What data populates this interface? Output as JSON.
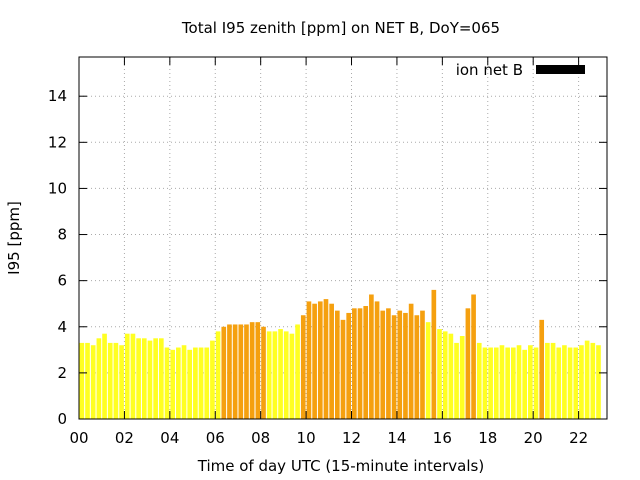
{
  "chart_data": {
    "type": "bar",
    "title": "Total I95 zenith [ppm] on NET B, DoY=065",
    "xlabel": "Time of day UTC (15-minute intervals)",
    "ylabel": "I95 [ppm]",
    "x_tick_labels": [
      "00",
      "02",
      "04",
      "06",
      "08",
      "10",
      "12",
      "14",
      "16",
      "18",
      "20",
      "22"
    ],
    "x_tick_hours": [
      0,
      2,
      4,
      6,
      8,
      10,
      12,
      14,
      16,
      18,
      20,
      22
    ],
    "y_tick_labels": [
      "0",
      "2",
      "4",
      "6",
      "8",
      "10",
      "12",
      "14"
    ],
    "y_tick_values": [
      0,
      2,
      4,
      6,
      8,
      10,
      12,
      14
    ],
    "xlim": [
      0,
      23.25
    ],
    "ylim": [
      0,
      15.7
    ],
    "bar_interval_hours": 0.25,
    "grid": true,
    "legend_position": "top-right",
    "series": [
      {
        "name": "ion net B",
        "legend_color": "#000000",
        "values": [
          3.3,
          3.3,
          3.2,
          3.5,
          3.7,
          3.3,
          3.3,
          3.2,
          3.7,
          3.7,
          3.5,
          3.5,
          3.4,
          3.5,
          3.5,
          3.1,
          3.0,
          3.1,
          3.2,
          3.0,
          3.1,
          3.1,
          3.1,
          3.4,
          3.8,
          4.0,
          4.1,
          4.1,
          4.1,
          4.1,
          4.2,
          4.2,
          4.0,
          3.8,
          3.8,
          3.9,
          3.8,
          3.7,
          4.1,
          4.5,
          5.1,
          5.0,
          5.1,
          5.2,
          5.0,
          4.7,
          4.3,
          4.6,
          4.8,
          4.8,
          4.9,
          5.4,
          5.1,
          4.7,
          4.8,
          4.5,
          4.7,
          4.6,
          5.0,
          4.5,
          4.7,
          4.2,
          5.6,
          3.9,
          3.8,
          3.7,
          3.3,
          3.6,
          4.8,
          5.4,
          3.3,
          3.1,
          3.1,
          3.1,
          3.2,
          3.1,
          3.1,
          3.2,
          3.0,
          3.2,
          3.1,
          4.3,
          3.3,
          3.3,
          3.1,
          3.2,
          3.1,
          3.1,
          3.2,
          3.4,
          3.3,
          3.2
        ],
        "levels": [
          "low",
          "low",
          "low",
          "low",
          "low",
          "low",
          "low",
          "low",
          "low",
          "low",
          "low",
          "low",
          "low",
          "low",
          "low",
          "low",
          "low",
          "low",
          "low",
          "low",
          "low",
          "low",
          "low",
          "low",
          "low",
          "high",
          "high",
          "high",
          "high",
          "high",
          "high",
          "high",
          "high",
          "low",
          "low",
          "low",
          "low",
          "low",
          "low",
          "high",
          "high",
          "high",
          "high",
          "high",
          "high",
          "high",
          "high",
          "high",
          "high",
          "high",
          "high",
          "high",
          "high",
          "high",
          "high",
          "high",
          "high",
          "high",
          "high",
          "high",
          "high",
          "low",
          "high",
          "low",
          "low",
          "low",
          "low",
          "low",
          "high",
          "high",
          "low",
          "low",
          "low",
          "low",
          "low",
          "low",
          "low",
          "low",
          "low",
          "low",
          "low",
          "high",
          "low",
          "low",
          "low",
          "low",
          "low",
          "low",
          "low",
          "low",
          "low",
          "low"
        ]
      }
    ],
    "colors": {
      "low": "#ffff22",
      "high": "#f5a00f",
      "grid": "#aaaaaa",
      "axis": "#000000"
    }
  }
}
